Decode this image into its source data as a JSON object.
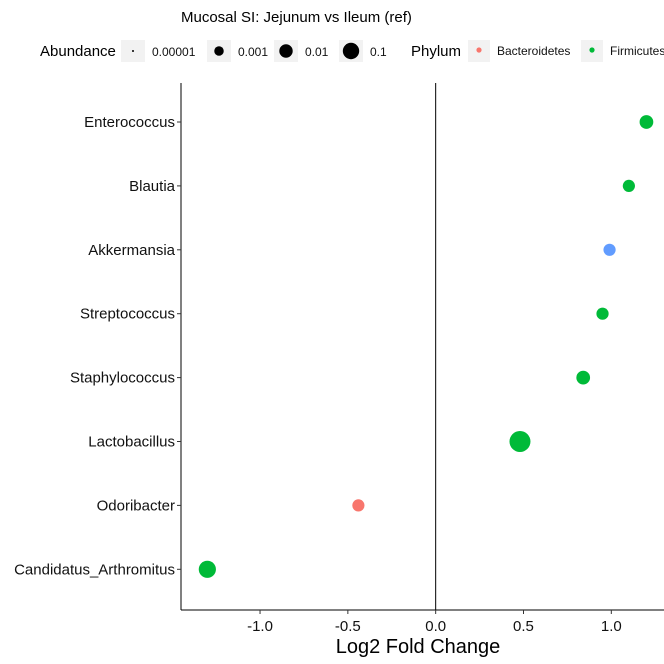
{
  "chart_data": {
    "type": "scatter",
    "title": "Mucosal SI: Jejunum vs Ileum (ref)",
    "xlabel": "Log2 Fold Change",
    "ylabel": "",
    "xlim": [
      -1.45,
      1.3
    ],
    "xticks": [
      -1.0,
      -0.5,
      0.0,
      0.5,
      1.0
    ],
    "xtick_labels": [
      "-1.0",
      "-0.5",
      "0.0",
      "0.5",
      "1.0"
    ],
    "reference_line_x": 0,
    "grid": false,
    "legend_placement": "top",
    "size_legend": {
      "title": "Abundance",
      "entries": [
        {
          "label": "0.00001",
          "value": 1e-05
        },
        {
          "label": "0.001",
          "value": 0.001
        },
        {
          "label": "0.01",
          "value": 0.01
        },
        {
          "label": "0.1",
          "value": 0.1
        }
      ]
    },
    "color_legend": {
      "title": "Phylum",
      "entries": [
        {
          "label": "Bacteroidetes",
          "color": "#F8766D"
        },
        {
          "label": "Firmicutes",
          "color": "#00BA38"
        }
      ]
    },
    "categories": [
      "Enterococcus",
      "Blautia",
      "Akkermansia",
      "Streptococcus",
      "Staphylococcus",
      "Lactobacillus",
      "Odoribacter",
      "Candidatus_Arthromitus"
    ],
    "points": [
      {
        "taxon": "Enterococcus",
        "x": 1.2,
        "abundance": 0.002,
        "color": "#00BA38"
      },
      {
        "taxon": "Blautia",
        "x": 1.1,
        "abundance": 0.001,
        "color": "#00BA38"
      },
      {
        "taxon": "Akkermansia",
        "x": 0.99,
        "abundance": 0.001,
        "color": "#619CFF"
      },
      {
        "taxon": "Streptococcus",
        "x": 0.95,
        "abundance": 0.001,
        "color": "#00BA38"
      },
      {
        "taxon": "Staphylococcus",
        "x": 0.84,
        "abundance": 0.002,
        "color": "#00BA38"
      },
      {
        "taxon": "Lactobacillus",
        "x": 0.48,
        "abundance": 0.1,
        "color": "#00BA38"
      },
      {
        "taxon": "Odoribacter",
        "x": -0.44,
        "abundance": 0.001,
        "color": "#F8766D"
      },
      {
        "taxon": "Candidatus_Arthromitus",
        "x": -1.3,
        "abundance": 0.01,
        "color": "#00BA38"
      }
    ]
  }
}
